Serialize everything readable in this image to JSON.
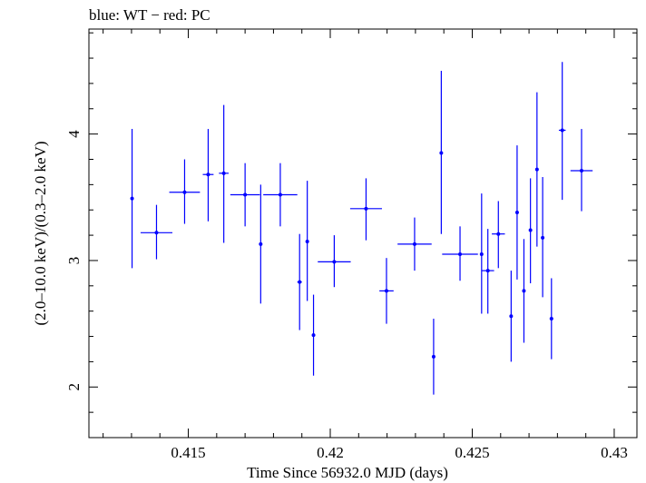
{
  "chart_data": {
    "type": "scatter",
    "title": "blue: WT − red: PC",
    "xlabel": "Time Since 56932.0 MJD (days)",
    "ylabel": "(2.0–10.0 keV)/(0.3–2.0 keV)",
    "xlim": [
      0.4115,
      0.4308
    ],
    "ylim": [
      1.6,
      4.83
    ],
    "xticks": [
      0.415,
      0.42,
      0.425,
      0.43
    ],
    "xtick_labels": [
      "0.415",
      "0.42",
      "0.425",
      "0.43"
    ],
    "yticks": [
      2,
      3,
      4
    ],
    "ytick_labels": [
      "2",
      "3",
      "4"
    ],
    "grid": false,
    "series": [
      {
        "name": "WT",
        "color": "#0000ff",
        "points": [
          {
            "x": 0.41302,
            "xerr": 2e-05,
            "y": 3.49,
            "ylo": 2.94,
            "yhi": 4.04
          },
          {
            "x": 0.41388,
            "xerr": 0.00056,
            "y": 3.22,
            "ylo": 3.01,
            "yhi": 3.44
          },
          {
            "x": 0.41487,
            "xerr": 0.00054,
            "y": 3.54,
            "ylo": 3.29,
            "yhi": 3.8
          },
          {
            "x": 0.4157,
            "xerr": 0.00019,
            "y": 3.68,
            "ylo": 3.31,
            "yhi": 4.04
          },
          {
            "x": 0.41625,
            "xerr": 0.00017,
            "y": 3.69,
            "ylo": 3.14,
            "yhi": 4.23
          },
          {
            "x": 0.417,
            "xerr": 0.00052,
            "y": 3.52,
            "ylo": 3.27,
            "yhi": 3.77
          },
          {
            "x": 0.41755,
            "xerr": 4e-05,
            "y": 3.13,
            "ylo": 2.66,
            "yhi": 3.6
          },
          {
            "x": 0.41824,
            "xerr": 0.0006,
            "y": 3.52,
            "ylo": 3.27,
            "yhi": 3.77
          },
          {
            "x": 0.41892,
            "xerr": 8e-05,
            "y": 2.83,
            "ylo": 2.45,
            "yhi": 3.21
          },
          {
            "x": 0.41919,
            "xerr": 4e-05,
            "y": 3.15,
            "ylo": 2.68,
            "yhi": 3.63
          },
          {
            "x": 0.41941,
            "xerr": 4e-05,
            "y": 2.41,
            "ylo": 2.09,
            "yhi": 2.73
          },
          {
            "x": 0.42014,
            "xerr": 0.00058,
            "y": 2.99,
            "ylo": 2.79,
            "yhi": 3.2
          },
          {
            "x": 0.42126,
            "xerr": 0.00056,
            "y": 3.41,
            "ylo": 3.16,
            "yhi": 3.65
          },
          {
            "x": 0.42198,
            "xerr": 0.00025,
            "y": 2.76,
            "ylo": 2.5,
            "yhi": 3.02
          },
          {
            "x": 0.42297,
            "xerr": 0.0006,
            "y": 3.13,
            "ylo": 2.92,
            "yhi": 3.34
          },
          {
            "x": 0.42364,
            "xerr": 5e-05,
            "y": 2.24,
            "ylo": 1.94,
            "yhi": 2.54
          },
          {
            "x": 0.42391,
            "xerr": 4e-05,
            "y": 3.85,
            "ylo": 3.21,
            "yhi": 4.5
          },
          {
            "x": 0.42457,
            "xerr": 0.00063,
            "y": 3.05,
            "ylo": 2.84,
            "yhi": 3.27
          },
          {
            "x": 0.42533,
            "xerr": 5e-05,
            "y": 3.05,
            "ylo": 2.58,
            "yhi": 3.53
          },
          {
            "x": 0.42555,
            "xerr": 0.00022,
            "y": 2.92,
            "ylo": 2.58,
            "yhi": 3.25
          },
          {
            "x": 0.42592,
            "xerr": 0.00023,
            "y": 3.21,
            "ylo": 2.94,
            "yhi": 3.47
          },
          {
            "x": 0.42637,
            "xerr": 5e-05,
            "y": 2.56,
            "ylo": 2.2,
            "yhi": 2.92
          },
          {
            "x": 0.42658,
            "xerr": 4e-05,
            "y": 3.38,
            "ylo": 2.85,
            "yhi": 3.91
          },
          {
            "x": 0.42682,
            "xerr": 5e-05,
            "y": 2.76,
            "ylo": 2.35,
            "yhi": 3.17
          },
          {
            "x": 0.42705,
            "xerr": 5e-05,
            "y": 3.24,
            "ylo": 2.82,
            "yhi": 3.65
          },
          {
            "x": 0.42728,
            "xerr": 5e-05,
            "y": 3.72,
            "ylo": 3.11,
            "yhi": 4.33
          },
          {
            "x": 0.42748,
            "xerr": 5e-05,
            "y": 3.18,
            "ylo": 2.71,
            "yhi": 3.66
          },
          {
            "x": 0.42779,
            "xerr": 6e-05,
            "y": 2.54,
            "ylo": 2.22,
            "yhi": 2.86
          },
          {
            "x": 0.42817,
            "xerr": 0.00012,
            "y": 4.03,
            "ylo": 3.48,
            "yhi": 4.57
          },
          {
            "x": 0.42885,
            "xerr": 0.00039,
            "y": 3.71,
            "ylo": 3.39,
            "yhi": 4.04
          }
        ]
      },
      {
        "name": "PC",
        "color": "#ff0000",
        "points": []
      }
    ]
  }
}
